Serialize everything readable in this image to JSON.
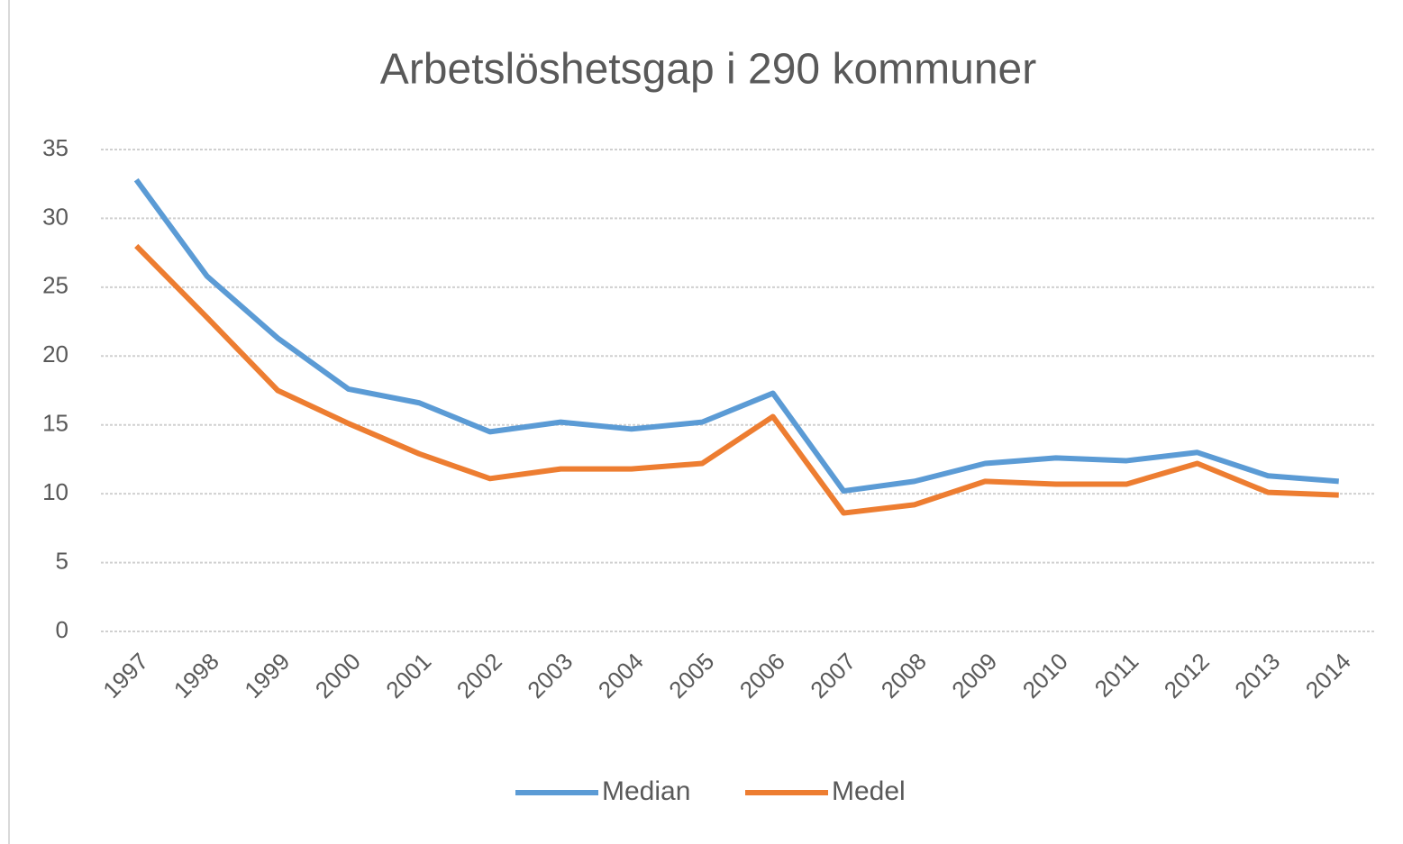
{
  "chart_data": {
    "type": "line",
    "title": "Arbetslöshetsgap i 290 kommuner",
    "categories": [
      "1997",
      "1998",
      "1999",
      "2000",
      "2001",
      "2002",
      "2003",
      "2004",
      "2005",
      "2006",
      "2007",
      "2008",
      "2009",
      "2010",
      "2011",
      "2012",
      "2013",
      "2014"
    ],
    "series": [
      {
        "name": "Median",
        "color": "#5b9bd5",
        "values": [
          32.8,
          25.8,
          21.3,
          17.6,
          16.6,
          14.5,
          15.2,
          14.7,
          15.2,
          17.3,
          10.2,
          10.9,
          12.2,
          12.6,
          12.4,
          13.0,
          11.3,
          10.9
        ]
      },
      {
        "name": "Medel",
        "color": "#ed7d31",
        "values": [
          28.0,
          22.8,
          17.5,
          15.1,
          12.9,
          11.1,
          11.8,
          11.8,
          12.2,
          15.6,
          8.6,
          9.2,
          10.9,
          10.7,
          10.7,
          12.2,
          10.1,
          9.9
        ]
      }
    ],
    "ylim": [
      0,
      35
    ],
    "yticks": [
      0,
      5,
      10,
      15,
      20,
      25,
      30,
      35
    ],
    "grid": true,
    "legend": "bottom"
  }
}
